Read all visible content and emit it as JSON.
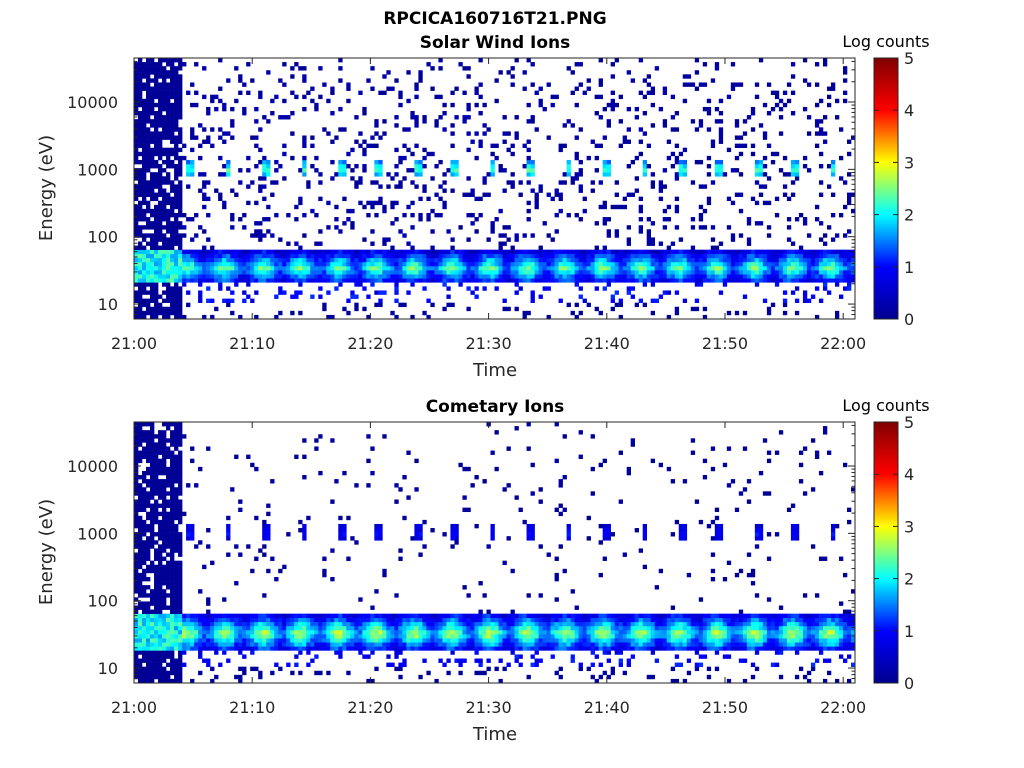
{
  "figure_title": "RPCICA160716T21.PNG",
  "colors": {
    "colormap": [
      "#00008f",
      "#0000ff",
      "#00ffff",
      "#ffff00",
      "#ff0000",
      "#800000"
    ],
    "axis": "#262626"
  },
  "chart_data": [
    {
      "type": "heatmap",
      "title": "Solar Wind Ions",
      "xlabel": "Time",
      "ylabel": "Energy (eV)",
      "x_ticks": [
        "21:00",
        "21:10",
        "21:20",
        "21:30",
        "21:40",
        "21:50",
        "22:00"
      ],
      "x_range": [
        "21:00",
        "22:01"
      ],
      "y_scale": "log",
      "y_ticks": [
        10,
        100,
        1000,
        10000
      ],
      "y_tick_labels": [
        "10",
        "100",
        "1000",
        "10000"
      ],
      "y_range": [
        6,
        45000
      ],
      "colorbar": {
        "label": "Log counts",
        "range": [
          0,
          5
        ],
        "ticks": [
          "0",
          "1",
          "2",
          "3",
          "4",
          "5"
        ]
      },
      "features": {
        "low_energy_band": {
          "energy_range": [
            20,
            60
          ],
          "peak_log_counts": 2.5
        },
        "high_energy_pulses": {
          "energy": 1000,
          "peak_log_counts": 2.3,
          "period_minutes": 3.2
        },
        "noise_log_counts": 0.3,
        "saturated_interval": [
          "21:00",
          "21:04"
        ]
      }
    },
    {
      "type": "heatmap",
      "title": "Cometary Ions",
      "xlabel": "Time",
      "ylabel": "Energy (eV)",
      "x_ticks": [
        "21:00",
        "21:10",
        "21:20",
        "21:30",
        "21:40",
        "21:50",
        "22:00"
      ],
      "x_range": [
        "21:00",
        "22:01"
      ],
      "y_scale": "log",
      "y_ticks": [
        10,
        100,
        1000,
        10000
      ],
      "y_tick_labels": [
        "10",
        "100",
        "1000",
        "10000"
      ],
      "y_range": [
        6,
        45000
      ],
      "colorbar": {
        "label": "Log counts",
        "range": [
          0,
          5
        ],
        "ticks": [
          "0",
          "1",
          "2",
          "3",
          "4",
          "5"
        ]
      },
      "features": {
        "low_energy_band": {
          "energy_range": [
            18,
            60
          ],
          "peak_log_counts": 2.8
        },
        "high_energy_pulses": {
          "energy": 1000,
          "peak_log_counts": 1.0,
          "period_minutes": 3.2
        },
        "noise_log_counts": 0.2,
        "saturated_interval": [
          "21:00",
          "21:04"
        ]
      }
    }
  ]
}
